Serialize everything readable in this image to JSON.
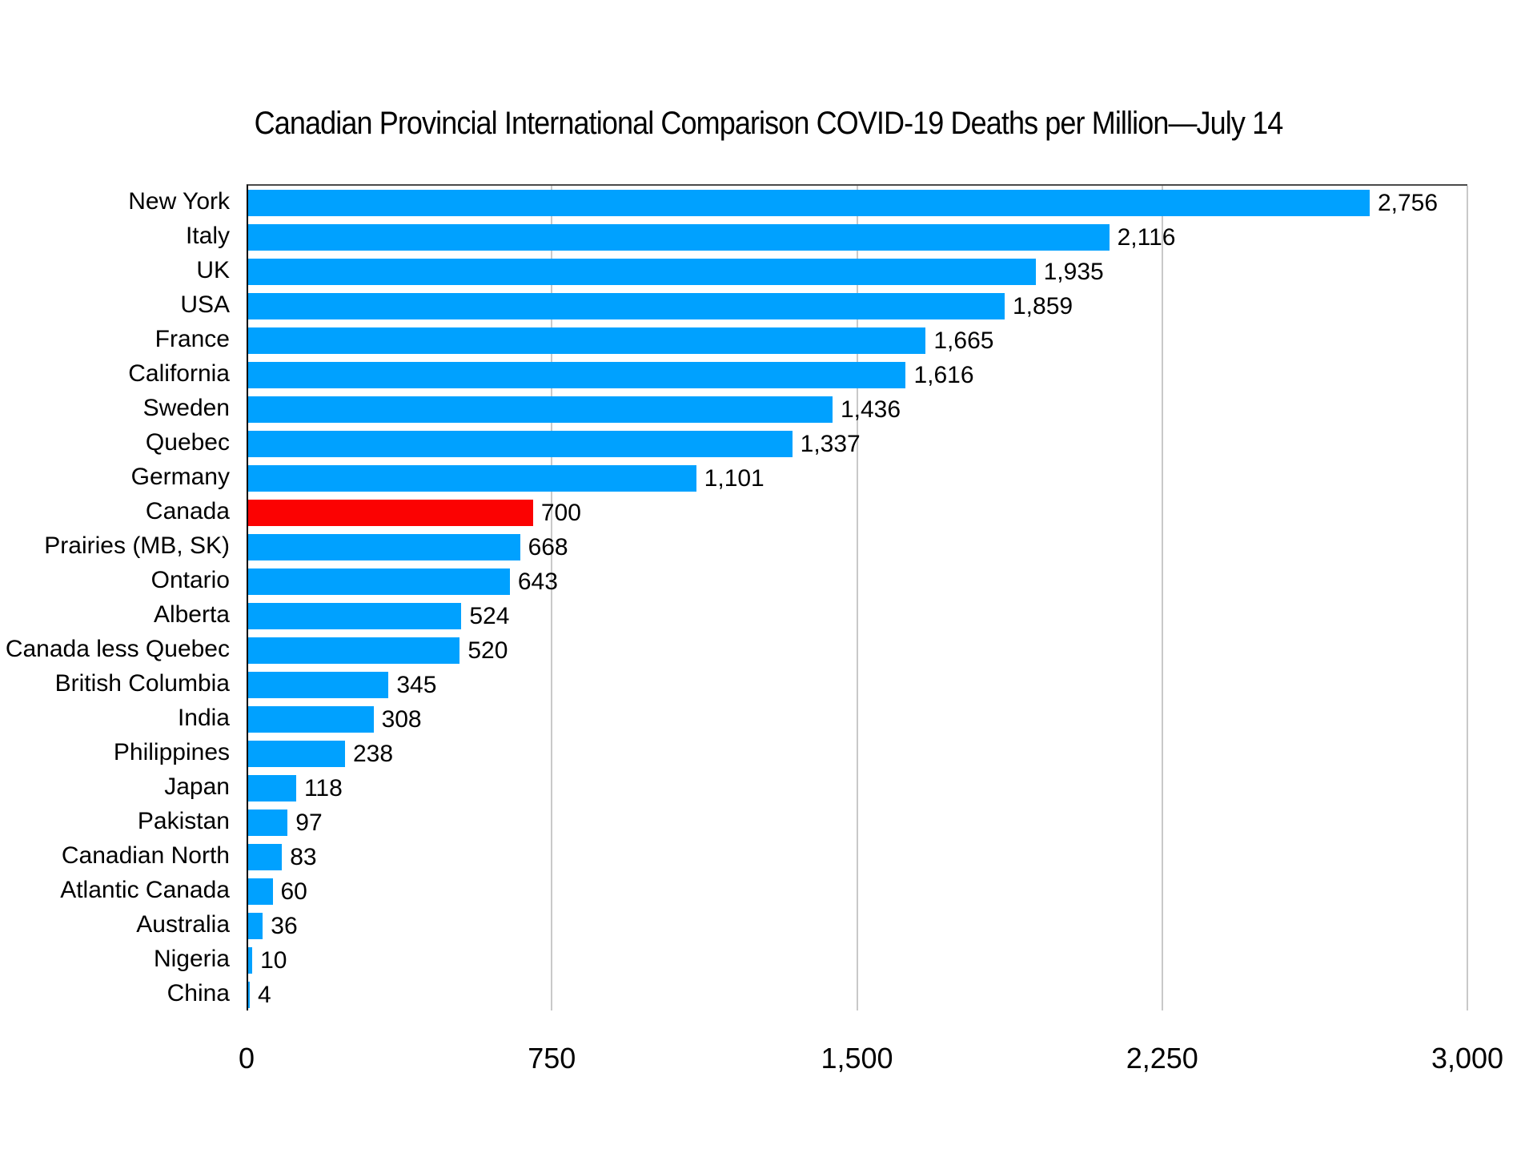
{
  "title": "Canadian Provincial International Comparison COVID-19 Deaths per Million—July 14",
  "chart_data": {
    "type": "bar",
    "orientation": "horizontal",
    "title": "Canadian Provincial International Comparison COVID-19 Deaths per Million—July 14",
    "xlabel": "",
    "ylabel": "",
    "xlim": [
      0,
      3000
    ],
    "x_ticks": [
      0,
      750,
      1500,
      2250,
      3000
    ],
    "x_tick_labels": [
      "0",
      "750",
      "1,500",
      "2,250",
      "3,000"
    ],
    "grid": "vertical-gridlines-on",
    "legend": "none",
    "categories": [
      "New York",
      "Italy",
      "UK",
      "USA",
      "France",
      "California",
      "Sweden",
      "Quebec",
      "Germany",
      "Canada",
      "Prairies (MB, SK)",
      "Ontario",
      "Alberta",
      "Canada less Quebec",
      "British Columbia",
      "India",
      "Philippines",
      "Japan",
      "Pakistan",
      "Canadian North",
      "Atlantic Canada",
      "Australia",
      "Nigeria",
      "China"
    ],
    "values": [
      2756,
      2116,
      1935,
      1859,
      1665,
      1616,
      1436,
      1337,
      1101,
      700,
      668,
      643,
      524,
      520,
      345,
      308,
      238,
      118,
      97,
      83,
      60,
      36,
      10,
      4
    ],
    "value_labels": [
      "2,756",
      "2,116",
      "1,935",
      "1,859",
      "1,665",
      "1,616",
      "1,436",
      "1,337",
      "1,101",
      "700",
      "668",
      "643",
      "524",
      "520",
      "345",
      "308",
      "238",
      "118",
      "97",
      "83",
      "60",
      "36",
      "10",
      "4"
    ],
    "highlight_category": "Canada",
    "colors": {
      "bar": "#00A1FF",
      "highlight_bar": "#FB0202",
      "gridline": "#C9C9C9",
      "axis_line": "#000000",
      "frame_top": "#4A4A4A",
      "background": "#FFFFFF",
      "text": "#000000"
    }
  }
}
